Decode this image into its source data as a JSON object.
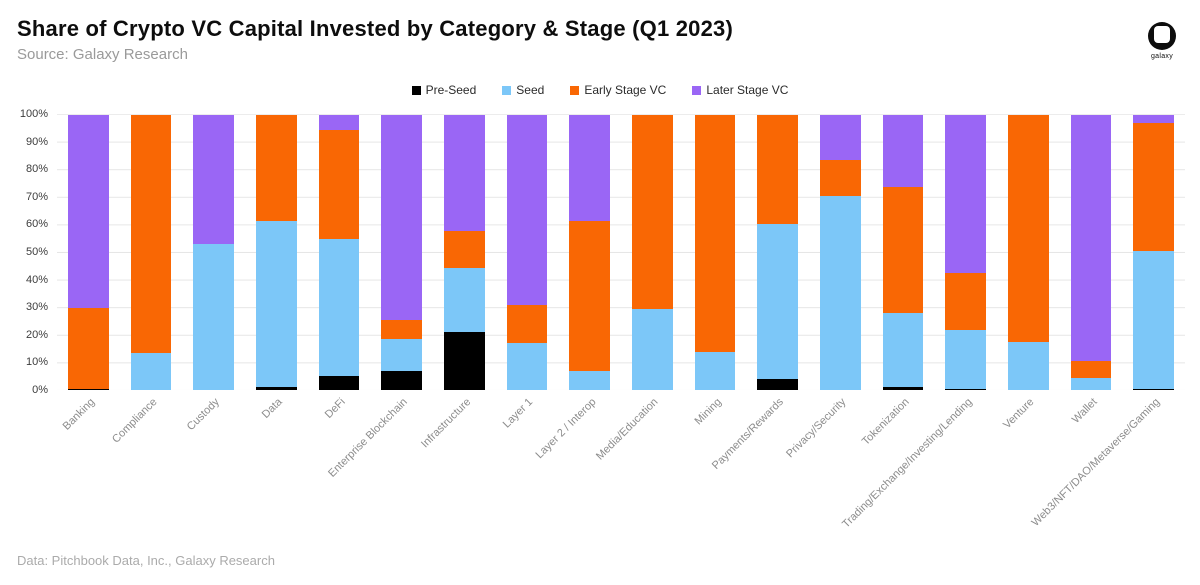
{
  "header": {
    "title": "Share of Crypto VC Capital Invested by Category & Stage (Q1 2023)",
    "source": "Source: Galaxy Research",
    "logo_label": "galaxy"
  },
  "footer": {
    "credit": "Data: Pitchbook Data, Inc., Galaxy Research"
  },
  "colors": {
    "pre_seed": "#000000",
    "seed": "#7CC7F8",
    "early": "#F96704",
    "later": "#9A66F5",
    "grid": "#E6E6E6"
  },
  "chart_data": {
    "type": "bar",
    "stacked": true,
    "unit": "percent",
    "title": "Share of Crypto VC Capital Invested by Category & Stage (Q1 2023)",
    "xlabel": "",
    "ylabel": "",
    "ylim": [
      0,
      100
    ],
    "grid": true,
    "legend_position": "top",
    "y_ticks": [
      "0%",
      "10%",
      "20%",
      "30%",
      "40%",
      "50%",
      "60%",
      "70%",
      "80%",
      "90%",
      "100%"
    ],
    "categories": [
      "Banking",
      "Compliance",
      "Custody",
      "Data",
      "DeFi",
      "Enterprise Blockchain",
      "Infrastructure",
      "Layer 1",
      "Layer 2 / Interop",
      "Media/Education",
      "Mining",
      "Payments/Rewards",
      "Privacy/Security",
      "Tokenization",
      "Trading/Exchange/Investing/Lending",
      "Venture",
      "Wallet",
      "Web3/NFT/DAO/Metaverse/Gaming"
    ],
    "series": [
      {
        "name": "Pre-Seed",
        "color_key": "pre_seed",
        "values": [
          0.5,
          0,
          0,
          1,
          5,
          7,
          21,
          0,
          0,
          0,
          0,
          4,
          0,
          1,
          0.5,
          0,
          0,
          0.5
        ]
      },
      {
        "name": "Seed",
        "color_key": "seed",
        "values": [
          0,
          13.5,
          53,
          60.5,
          50,
          11.5,
          23.5,
          17,
          7,
          29.5,
          14,
          56.5,
          70.5,
          27,
          21.5,
          17.5,
          4.5,
          50
        ]
      },
      {
        "name": "Early Stage VC",
        "color_key": "early",
        "values": [
          29.5,
          86.5,
          0,
          38.5,
          39.5,
          7,
          13.5,
          14,
          54.5,
          70.5,
          86,
          39.5,
          13,
          46,
          20.5,
          82.5,
          6,
          46.5
        ]
      },
      {
        "name": "Later Stage VC",
        "color_key": "later",
        "values": [
          70,
          0,
          47,
          0,
          5.5,
          74.5,
          42,
          69,
          38.5,
          0,
          0,
          0,
          16.5,
          26,
          57.5,
          0,
          89.5,
          3
        ]
      }
    ]
  }
}
